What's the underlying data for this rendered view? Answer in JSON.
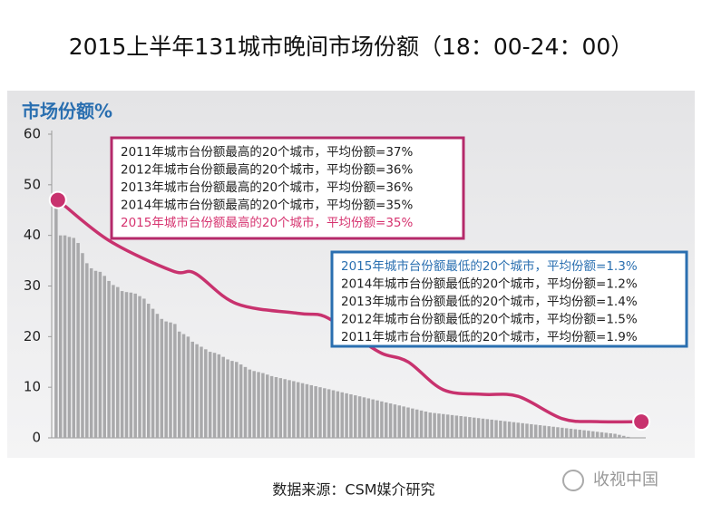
{
  "chart_data": {
    "type": "bar",
    "title": "2015上半年131城市晚间市场份额（18：00-24：00）",
    "y_label": "市场份额%",
    "source": "数据来源：CSM媒介研究",
    "watermark": "收视中国",
    "color": "#a9a9ab",
    "values": [
      47,
      40,
      40,
      39.7,
      39.5,
      38.5,
      36.5,
      34.5,
      33.5,
      33,
      32.8,
      32,
      31,
      30.2,
      29.8,
      29,
      28.8,
      28.7,
      28.5,
      28,
      27.5,
      26.5,
      25.5,
      24.5,
      23.5,
      23,
      22.8,
      22.5,
      21,
      20.5,
      20,
      19,
      18.5,
      18,
      17.5,
      17,
      16.8,
      16.5,
      16,
      15.5,
      15.2,
      15,
      14.5,
      14,
      13.5,
      13.2,
      13,
      12.8,
      12.5,
      12.2,
      12,
      11.8,
      11.6,
      11.4,
      11.2,
      11,
      10.8,
      10.6,
      10.4,
      10.2,
      10,
      9.8,
      9.6,
      9.4,
      9.2,
      9,
      8.8,
      8.6,
      8.4,
      8.2,
      8,
      7.8,
      7.6,
      7.4,
      7.2,
      7,
      6.8,
      6.6,
      6.4,
      6.2,
      6,
      5.8,
      5.6,
      5.4,
      5.2,
      5,
      4.9,
      4.8,
      4.7,
      4.6,
      4.5,
      4.4,
      4.3,
      4.2,
      4.1,
      4,
      3.9,
      3.8,
      3.7,
      3.6,
      3.5,
      3.4,
      3.3,
      3.2,
      3.1,
      3,
      2.9,
      2.8,
      2.7,
      2.6,
      2.5,
      2.4,
      2.3,
      2.2,
      2.1,
      2,
      1.9,
      1.8,
      1.7,
      1.6,
      1.5,
      1.4,
      1.3,
      1.2,
      1.1,
      1,
      0.9,
      0.8,
      0.6,
      0.4,
      0.2
    ],
    "line": {
      "color": "#c8326e",
      "x": [
        1.4,
        13,
        27.4,
        32.6,
        42,
        56,
        62,
        69,
        75,
        81,
        89,
        98,
        106,
        116,
        124,
        134
      ],
      "values": [
        47,
        39,
        33,
        32.5,
        26.5,
        24.6,
        24,
        20,
        16.7,
        15,
        9.5,
        8.6,
        8.2,
        3.8,
        3.2,
        3.2
      ]
    },
    "xlim": [
      0,
      135
    ],
    "ylim": [
      0,
      60
    ],
    "yticks": [
      0,
      10,
      20,
      30,
      40,
      50,
      60
    ],
    "boxes": [
      {
        "border_color": "#b5296a",
        "lines": [
          {
            "text": "2011年城市台份额最高的20个城市，平均份额=37%",
            "color": "#222222"
          },
          {
            "text": "2012年城市台份额最高的20个城市，平均份额=36%",
            "color": "#222222"
          },
          {
            "text": "2013年城市台份额最高的20个城市，平均份额=36%",
            "color": "#222222"
          },
          {
            "text": "2014年城市台份额最高的20个城市，平均份额=35%",
            "color": "#222222"
          },
          {
            "text": "2015年城市台份额最高的20个城市，平均份额=35%",
            "color": "#d6336f"
          }
        ]
      },
      {
        "border_color": "#2a6fb0",
        "lines": [
          {
            "text": "2015年城市台份额最低的20个城市，平均份额=1.3%",
            "color": "#2a6fb0"
          },
          {
            "text": "2014年城市台份额最低的20个城市，平均份额=1.2%",
            "color": "#222222"
          },
          {
            "text": "2013年城市台份额最低的20个城市，平均份额=1.4%",
            "color": "#222222"
          },
          {
            "text": "2012年城市台份额最低的20个城市，平均份额=1.5%",
            "color": "#222222"
          },
          {
            "text": "2011年城市台份额最低的20个城市，平均份额=1.9%",
            "color": "#222222"
          }
        ]
      }
    ]
  }
}
